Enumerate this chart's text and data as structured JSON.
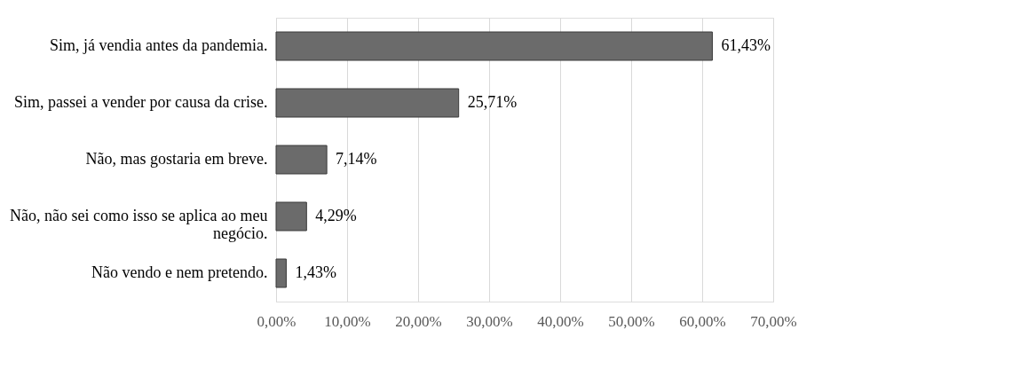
{
  "chart_data": {
    "type": "bar",
    "orientation": "horizontal",
    "categories": [
      "Sim, já vendia antes da pandemia.",
      "Sim, passei a vender por causa da crise.",
      "Não, mas gostaria em breve.",
      "Não, não sei como isso se aplica ao meu negócio.",
      "Não vendo e nem pretendo."
    ],
    "values": [
      61.43,
      25.71,
      7.14,
      4.29,
      1.43
    ],
    "value_labels": [
      "61,43%",
      "25,71%",
      "7,14%",
      "4,29%",
      "1,43%"
    ],
    "color": "#6b6b6b",
    "xlim": [
      0,
      70
    ],
    "xticks": [
      {
        "value": 0,
        "label": "0,00%"
      },
      {
        "value": 10,
        "label": "10,00%"
      },
      {
        "value": 20,
        "label": "20,00%"
      },
      {
        "value": 30,
        "label": "30,00%"
      },
      {
        "value": 40,
        "label": "40,00%"
      },
      {
        "value": 50,
        "label": "50,00%"
      },
      {
        "value": 60,
        "label": "60,00%"
      },
      {
        "value": 70,
        "label": "70,00%"
      }
    ],
    "grid": "x"
  }
}
